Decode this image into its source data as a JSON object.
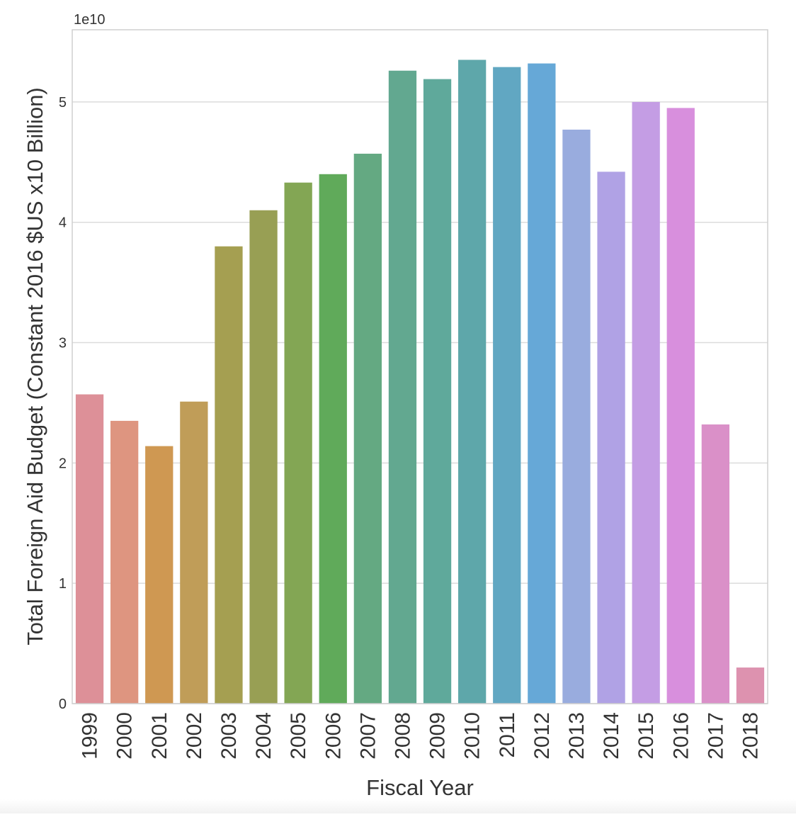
{
  "chart_data": {
    "type": "bar",
    "xlabel": "Fiscal Year",
    "ylabel": "Total Foreign Aid Budget (Constant 2016 $US x10 Billion)",
    "offset_label": "1e10",
    "categories": [
      "1999",
      "2000",
      "2001",
      "2002",
      "2003",
      "2004",
      "2005",
      "2006",
      "2007",
      "2008",
      "2009",
      "2010",
      "2011",
      "2012",
      "2013",
      "2014",
      "2015",
      "2016",
      "2017",
      "2018"
    ],
    "values": [
      25700000000,
      23500000000,
      21400000000,
      25100000000,
      38000000000,
      41000000000,
      43300000000,
      44000000000,
      45700000000,
      52600000000,
      51900000000,
      53500000000,
      52900000000,
      53200000000,
      47700000000,
      44200000000,
      50000000000,
      49500000000,
      23200000000,
      3000000000
    ],
    "ylim": [
      0,
      56000000000
    ],
    "yticks": [
      0,
      10000000000,
      20000000000,
      30000000000,
      40000000000,
      50000000000
    ],
    "ytick_labels": [
      "0",
      "1",
      "2",
      "3",
      "4",
      "5"
    ],
    "grid": true,
    "colors": [
      "#dd9098",
      "#de9580",
      "#cf9852",
      "#c09d58",
      "#a59f51",
      "#989f54",
      "#83a654",
      "#60aa5a",
      "#64a982",
      "#62a890",
      "#5fa99b",
      "#5ea7aa",
      "#61a7c2",
      "#66a8d7",
      "#99acde",
      "#b0a2e5",
      "#c49de4",
      "#d88fdd",
      "#da90c8",
      "#dd92af"
    ]
  }
}
